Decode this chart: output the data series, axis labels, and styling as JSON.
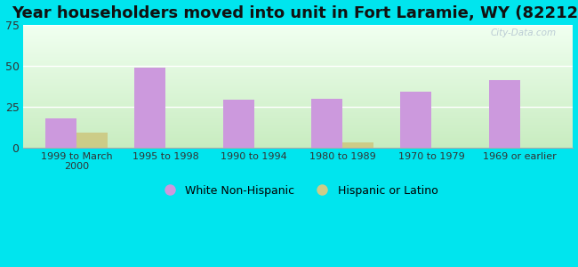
{
  "title": "Year householders moved into unit in Fort Laramie, WY (82212)",
  "categories": [
    "1999 to March\n2000",
    "1995 to 1998",
    "1990 to 1994",
    "1980 to 1989",
    "1970 to 1979",
    "1969 or earlier"
  ],
  "white_values": [
    18,
    49,
    29,
    30,
    34,
    41
  ],
  "hispanic_values": [
    9,
    0,
    0,
    3,
    0,
    0
  ],
  "white_color": "#cc99dd",
  "hispanic_color": "#cccc88",
  "background_outer": "#00e5ee",
  "grad_top": "#f0fff0",
  "grad_bottom": "#c8ecc0",
  "ylim": [
    0,
    75
  ],
  "yticks": [
    0,
    25,
    50,
    75
  ],
  "bar_width": 0.35,
  "title_fontsize": 13,
  "legend_labels": [
    "White Non-Hispanic",
    "Hispanic or Latino"
  ],
  "watermark": "City-Data.com"
}
